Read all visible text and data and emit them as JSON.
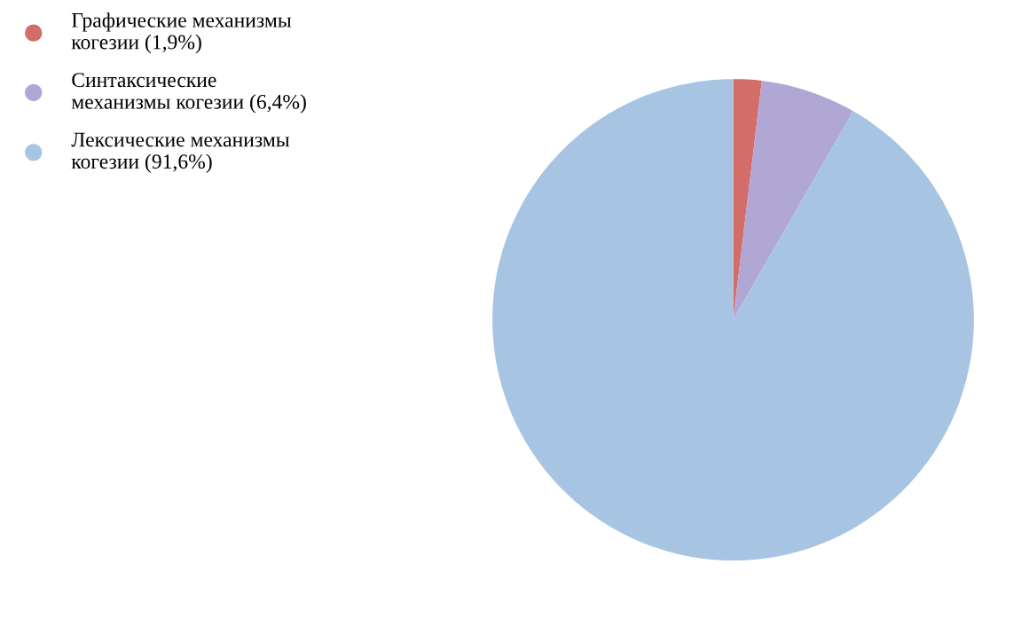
{
  "chart_data": {
    "type": "pie",
    "categories": [
      "Графические механизмы\nкогезии (1,9%)",
      "Синтаксические\nмеханизмы когезии (6,4%)",
      "Лексические механизмы\nкогезии (91,6%)"
    ],
    "values": [
      1.9,
      6.4,
      91.6
    ],
    "colors": [
      "#d36d69",
      "#b1a7d4",
      "#a8c4e3"
    ],
    "legend": "top left"
  }
}
